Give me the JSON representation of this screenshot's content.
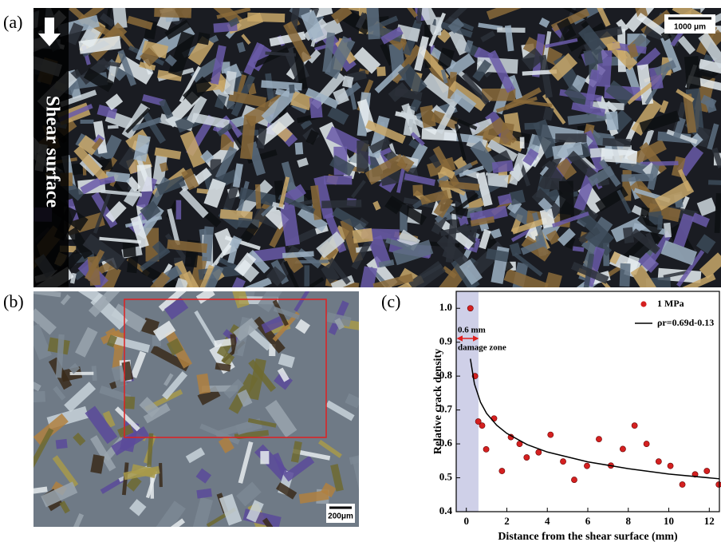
{
  "panels": {
    "a": {
      "label": "(a)",
      "side_text": "Shear surface",
      "scale_bar": "1000 μm"
    },
    "b": {
      "label": "(b)",
      "scale_bar": "200μm"
    },
    "c": {
      "label": "(c)"
    }
  },
  "chart_data": {
    "type": "scatter",
    "xlabel": "Distance from the shear surface (mm)",
    "ylabel": "Relative crack density",
    "xlim": [
      -0.5,
      12.5
    ],
    "ylim": [
      0.4,
      1.05
    ],
    "xticks": [
      0,
      2,
      4,
      6,
      8,
      10,
      12
    ],
    "yticks": [
      0.4,
      0.5,
      0.6,
      0.7,
      0.8,
      0.9,
      {
        "value": 1,
        "label": "1.0"
      }
    ],
    "legend": "upper right",
    "annotation": {
      "text_top": "0.6 mm",
      "text_bottom": "damage zone",
      "zone_end": 0.6,
      "zone_color": "#cfd0e8",
      "arrow_color": "#e02020"
    },
    "series": [
      {
        "name": "1 MPa",
        "kind": "points",
        "color": "#d42020",
        "x": [
          0.2,
          0.43,
          0.59,
          0.78,
          0.98,
          1.37,
          1.76,
          2.2,
          2.63,
          2.98,
          3.57,
          4.16,
          4.78,
          5.33,
          5.96,
          6.55,
          7.14,
          7.73,
          8.31,
          8.9,
          9.5,
          10.08,
          10.67,
          11.3,
          11.88,
          12.47
        ],
        "values": [
          1.0,
          0.8,
          0.666,
          0.654,
          0.584,
          0.675,
          0.52,
          0.62,
          0.6,
          0.56,
          0.575,
          0.627,
          0.548,
          0.494,
          0.535,
          0.614,
          0.536,
          0.585,
          0.654,
          0.6,
          0.548,
          0.535,
          0.48,
          0.51,
          0.52,
          0.48
        ]
      },
      {
        "name": "ρr=0.69d-0.13",
        "kind": "line",
        "color": "#000000",
        "x": [
          0.2,
          0.4,
          0.7,
          1,
          1.5,
          2,
          3,
          4,
          6,
          8,
          10,
          12.5
        ],
        "values": [
          0.851,
          0.777,
          0.723,
          0.69,
          0.655,
          0.631,
          0.598,
          0.576,
          0.547,
          0.527,
          0.511,
          0.497
        ]
      }
    ]
  }
}
